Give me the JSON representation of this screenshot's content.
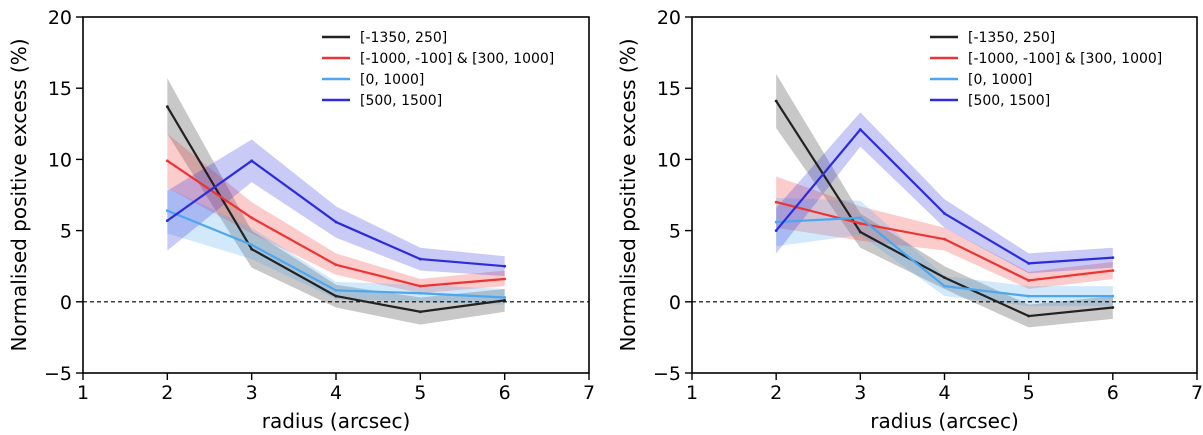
{
  "chart_data": [
    {
      "type": "line",
      "xlabel": "radius (arcsec)",
      "ylabel": "Normalised positive excess (%)",
      "xlim": [
        1,
        7
      ],
      "ylim": [
        -5,
        20
      ],
      "xticks": [
        "1",
        "2",
        "3",
        "4",
        "5",
        "6",
        "7"
      ],
      "yticks": [
        "−5",
        "0",
        "5",
        "10",
        "15",
        "20"
      ],
      "reference_line": {
        "y": 0,
        "style": "dashed",
        "color": "#000000"
      },
      "legend_position": "top-right",
      "grid": false,
      "x": [
        2,
        3,
        4,
        5,
        6
      ],
      "series": [
        {
          "name": "[-1350, 250]",
          "color": "#222222",
          "values": [
            13.7,
            3.7,
            0.4,
            -0.7,
            0.1
          ],
          "lower": [
            11.8,
            2.4,
            -0.4,
            -1.6,
            -0.7
          ],
          "upper": [
            15.7,
            5.0,
            1.2,
            0.3,
            0.9
          ]
        },
        {
          "name": "[-1000, -100] & [300, 1000]",
          "color": "#ee3333",
          "values": [
            9.9,
            5.9,
            2.6,
            1.1,
            1.6
          ],
          "lower": [
            8.0,
            4.8,
            1.9,
            0.6,
            1.1
          ],
          "upper": [
            11.8,
            7.0,
            3.4,
            1.6,
            2.2
          ]
        },
        {
          "name": "[0, 1000]",
          "color": "#4da6f0",
          "values": [
            6.4,
            4.0,
            0.8,
            0.6,
            0.3
          ],
          "lower": [
            4.8,
            3.0,
            0.2,
            0.0,
            -0.2
          ],
          "upper": [
            8.0,
            5.2,
            1.4,
            1.2,
            0.9
          ]
        },
        {
          "name": "[500, 1500]",
          "color": "#2c2cdc",
          "values": [
            5.7,
            9.9,
            5.6,
            3.0,
            2.5
          ],
          "lower": [
            3.6,
            8.4,
            4.5,
            2.2,
            1.8
          ],
          "upper": [
            7.8,
            11.4,
            6.7,
            3.8,
            3.2
          ]
        }
      ]
    },
    {
      "type": "line",
      "xlabel": "radius (arcsec)",
      "ylabel": "Normalised positive excess (%)",
      "xlim": [
        1,
        7
      ],
      "ylim": [
        -5,
        20
      ],
      "xticks": [
        "1",
        "2",
        "3",
        "4",
        "5",
        "6",
        "7"
      ],
      "yticks": [
        "−5",
        "0",
        "5",
        "10",
        "15",
        "20"
      ],
      "reference_line": {
        "y": 0,
        "style": "dashed",
        "color": "#000000"
      },
      "legend_position": "top-right",
      "grid": false,
      "x": [
        2,
        3,
        4,
        5,
        6
      ],
      "series": [
        {
          "name": "[-1350, 250]",
          "color": "#222222",
          "values": [
            14.1,
            4.9,
            1.7,
            -1.0,
            -0.4
          ],
          "lower": [
            12.2,
            3.8,
            0.9,
            -1.8,
            -1.2
          ],
          "upper": [
            16.0,
            6.2,
            2.5,
            -0.2,
            0.4
          ]
        },
        {
          "name": "[-1000, -100] & [300, 1000]",
          "color": "#ee3333",
          "values": [
            7.0,
            5.5,
            4.4,
            1.5,
            2.2
          ],
          "lower": [
            5.2,
            4.3,
            3.6,
            0.9,
            1.6
          ],
          "upper": [
            8.8,
            6.7,
            5.2,
            2.1,
            2.8
          ]
        },
        {
          "name": "[0, 1000]",
          "color": "#4da6f0",
          "values": [
            5.6,
            5.9,
            1.1,
            0.4,
            0.4
          ],
          "lower": [
            3.9,
            4.7,
            0.4,
            -0.3,
            -0.3
          ],
          "upper": [
            7.3,
            7.1,
            1.8,
            1.1,
            1.1
          ]
        },
        {
          "name": "[500, 1500]",
          "color": "#2c2cdc",
          "values": [
            5.0,
            12.1,
            6.2,
            2.7,
            3.1
          ],
          "lower": [
            3.4,
            10.9,
            5.2,
            2.0,
            2.4
          ],
          "upper": [
            6.6,
            13.3,
            7.2,
            3.4,
            3.8
          ]
        }
      ]
    }
  ]
}
